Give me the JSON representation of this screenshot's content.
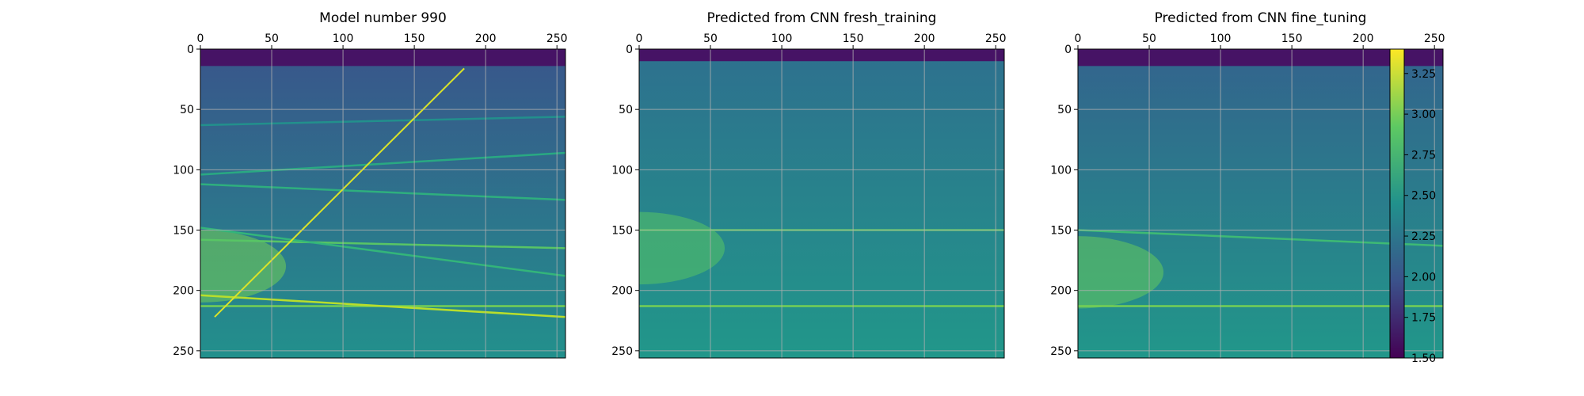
{
  "chart_data": {
    "type": "heatmap",
    "colormap": "viridis",
    "grid": true,
    "x_axis_position": "top",
    "y_axis_inverted": true,
    "xlim": [
      0,
      256
    ],
    "ylim": [
      256,
      0
    ],
    "x_ticks": [
      0,
      50,
      100,
      150,
      200,
      250
    ],
    "y_ticks": [
      0,
      50,
      100,
      150,
      200,
      250
    ],
    "panels": [
      {
        "title": "Model number 990",
        "background": {
          "top_rows_value": 1.6,
          "top_rows_end": 14,
          "base_value": 2.0,
          "bottom_value": 2.45
        },
        "layers": [
          {
            "depth_start": 63,
            "depth_end": 56,
            "value": 2.45
          },
          {
            "depth_start": 104,
            "depth_end": 86,
            "value": 2.65
          },
          {
            "depth_start": 112,
            "depth_end": 125,
            "value": 2.7
          },
          {
            "depth_start": 158,
            "depth_end": 165,
            "value": 2.9
          },
          {
            "depth_start": 148,
            "depth_end": 188,
            "value": 2.75
          },
          {
            "depth_start": 213,
            "depth_end": 213,
            "value": 3.0
          },
          {
            "depth_start": 204,
            "depth_end": 222,
            "value": 3.2
          }
        ],
        "diagonal": {
          "from": [
            10,
            222
          ],
          "to": [
            185,
            16
          ],
          "value": 3.3
        },
        "bright_zone": {
          "center": [
            0,
            180
          ],
          "value": 3.0
        }
      },
      {
        "title": "Predicted from CNN fresh_training",
        "background": {
          "top_rows_value": 1.6,
          "top_rows_end": 10,
          "base_value": 2.2,
          "bottom_value": 2.5
        },
        "layers": [
          {
            "depth_start": 150,
            "depth_end": 150,
            "value": 2.9
          },
          {
            "depth_start": 213,
            "depth_end": 213,
            "value": 3.0
          }
        ],
        "bright_zone": {
          "center": [
            0,
            165
          ],
          "value": 2.9
        }
      },
      {
        "title": "Predicted from CNN fine_tuning",
        "background": {
          "top_rows_value": 1.6,
          "top_rows_end": 14,
          "base_value": 2.1,
          "bottom_value": 2.5
        },
        "layers": [
          {
            "depth_start": 150,
            "depth_end": 163,
            "value": 2.8
          },
          {
            "depth_start": 213,
            "depth_end": 213,
            "value": 3.0
          }
        ],
        "bright_zone": {
          "center": [
            0,
            185
          ],
          "value": 2.95
        }
      }
    ],
    "colorbar": {
      "range": [
        1.5,
        3.4
      ],
      "ticks": [
        "1.50",
        "1.75",
        "2.00",
        "2.25",
        "2.50",
        "2.75",
        "3.00",
        "3.25"
      ]
    }
  }
}
